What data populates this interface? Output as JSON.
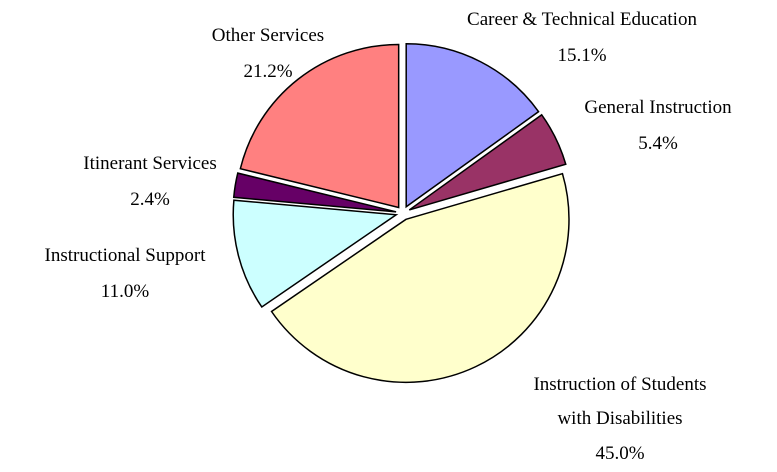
{
  "chart_data": {
    "type": "pie",
    "categories": [
      "Career & Technical Education",
      "General Instruction",
      "Instruction of Students with Disabilities",
      "Instructional Support",
      "Itinerant Services",
      "Other Services"
    ],
    "values": [
      15.1,
      5.4,
      45.0,
      11.0,
      2.4,
      21.2
    ],
    "value_labels": [
      "15.1%",
      "5.4%",
      "45.0%",
      "11.0%",
      "2.4%",
      "21.2%"
    ],
    "colors": [
      "#9999ff",
      "#993366",
      "#ffffcc",
      "#ccffff",
      "#660066",
      "#ff8080"
    ]
  }
}
